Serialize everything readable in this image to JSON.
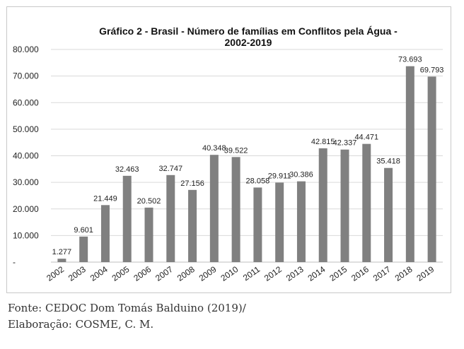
{
  "chart_data": {
    "type": "bar",
    "title_lines": [
      "Gráfico 2 - Brasil - Número de famílias em Conflitos pela Água -",
      "2002-2019"
    ],
    "categories": [
      "2002",
      "2003",
      "2004",
      "2005",
      "2006",
      "2007",
      "2008",
      "2009",
      "2010",
      "2011",
      "2012",
      "2013",
      "2014",
      "2015",
      "2016",
      "2017",
      "2018",
      "2019"
    ],
    "values": [
      1277,
      9601,
      21449,
      32463,
      20502,
      32747,
      27156,
      40348,
      39522,
      28058,
      29911,
      30386,
      42815,
      42337,
      44471,
      35418,
      73693,
      69793
    ],
    "value_labels": [
      "1.277",
      "9.601",
      "21.449",
      "32.463",
      "20.502",
      "32.747",
      "27.156",
      "40.348",
      "39.522",
      "28.058",
      "29.911",
      "30.386",
      "42.815",
      "42.337",
      "44.471",
      "35.418",
      "73.693",
      "69.793"
    ],
    "yticks": [
      0,
      10000,
      20000,
      30000,
      40000,
      50000,
      60000,
      70000,
      80000
    ],
    "ytick_labels": [
      "-",
      "10.000",
      "20.000",
      "30.000",
      "40.000",
      "50.000",
      "60.000",
      "70.000",
      "80.000"
    ],
    "ylim": [
      0,
      80000
    ],
    "grid": true,
    "bar_color": "#808080",
    "grid_color": "#d9d9d9"
  },
  "caption": {
    "line1": "Fonte: CEDOC Dom Tomás Balduino (2019)/",
    "line2": "Elaboração: COSME, C. M."
  }
}
